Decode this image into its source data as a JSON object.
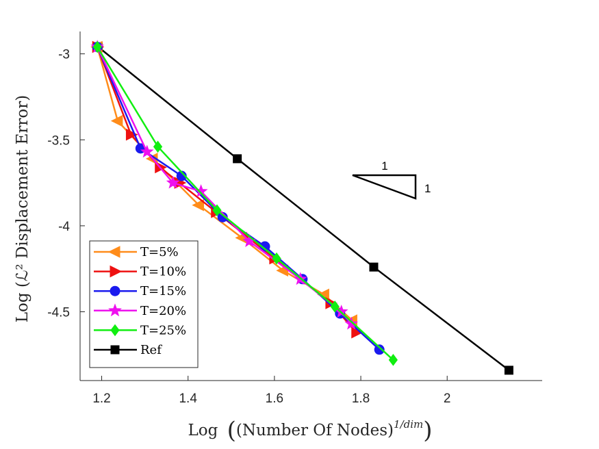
{
  "chart_data": {
    "type": "line",
    "ylabel": "Log (ℒ² Displacement Error)",
    "xlim": [
      1.15,
      2.22
    ],
    "ylim": [
      -4.9,
      -2.87
    ],
    "xticks": [
      "1.2",
      "1.4",
      "1.6",
      "1.8",
      "2"
    ],
    "yticks": [
      "-3",
      "-3.5",
      "-4",
      "-4.5"
    ],
    "xlabel": {
      "prefix": "Log",
      "inner": "Number Of Nodes",
      "sup": "1/dim"
    },
    "slope_triangle": {
      "run_label": "1",
      "rise_label": "1"
    },
    "series": [
      {
        "name": "T=5%",
        "color": "#ff8c1a",
        "marker": "triangle-left",
        "x": [
          1.19,
          1.237,
          1.318,
          1.425,
          1.525,
          1.62,
          1.715,
          1.78
        ],
        "y": [
          -2.96,
          -3.39,
          -3.61,
          -3.88,
          -4.07,
          -4.26,
          -4.4,
          -4.55
        ]
      },
      {
        "name": "T=10%",
        "color": "#ee1111",
        "marker": "triangle-right",
        "x": [
          1.19,
          1.268,
          1.335,
          1.38,
          1.465,
          1.6,
          1.73,
          1.79
        ],
        "y": [
          -2.96,
          -3.47,
          -3.66,
          -3.75,
          -3.92,
          -4.19,
          -4.45,
          -4.62
        ]
      },
      {
        "name": "T=15%",
        "color": "#1a1aee",
        "marker": "circle",
        "x": [
          1.19,
          1.29,
          1.385,
          1.48,
          1.578,
          1.665,
          1.752,
          1.843
        ],
        "y": [
          -2.96,
          -3.55,
          -3.71,
          -3.95,
          -4.12,
          -4.31,
          -4.51,
          -4.72
        ]
      },
      {
        "name": "T=20%",
        "color": "#ee11ee",
        "marker": "star",
        "x": [
          1.19,
          1.305,
          1.365,
          1.43,
          1.542,
          1.66,
          1.755,
          1.778
        ],
        "y": [
          -2.96,
          -3.57,
          -3.75,
          -3.8,
          -4.09,
          -4.31,
          -4.5,
          -4.57
        ]
      },
      {
        "name": "T=25%",
        "color": "#11ee11",
        "marker": "diamond",
        "x": [
          1.19,
          1.33,
          1.467,
          1.605,
          1.74,
          1.875
        ],
        "y": [
          -2.96,
          -3.54,
          -3.91,
          -4.19,
          -4.47,
          -4.78
        ]
      },
      {
        "name": "Ref",
        "color": "#000000",
        "marker": "square",
        "x": [
          1.192,
          1.514,
          1.83,
          2.143
        ],
        "y": [
          -2.96,
          -3.61,
          -4.24,
          -4.84
        ]
      }
    ]
  }
}
